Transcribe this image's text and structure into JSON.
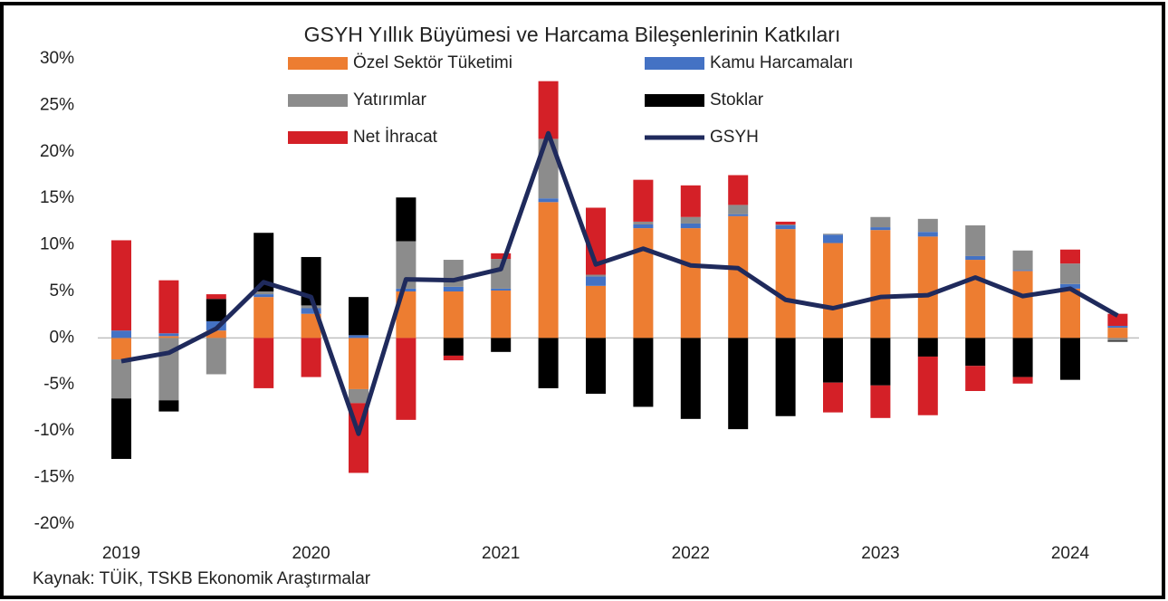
{
  "chart_data": {
    "type": "bar",
    "stacked": true,
    "title": "GSYH Yıllık Büyümesi ve Harcama Bileşenlerinin  Katkıları",
    "source": "Kaynak: TÜİK, TSKB Ekonomik Araştırmalar",
    "categories": [
      "2019",
      null,
      null,
      null,
      "2020",
      null,
      null,
      null,
      "2021",
      null,
      null,
      null,
      "2022",
      null,
      null,
      null,
      "2023",
      null,
      null,
      null,
      "2024",
      null
    ],
    "ylim": [
      -20,
      30
    ],
    "yticks": [
      {
        "value": -20,
        "label": "-20%"
      },
      {
        "value": -15,
        "label": "-15%"
      },
      {
        "value": -10,
        "label": "-10%"
      },
      {
        "value": -5,
        "label": "-5%"
      },
      {
        "value": 0,
        "label": "0%"
      },
      {
        "value": 5,
        "label": "5%"
      },
      {
        "value": 10,
        "label": "10%"
      },
      {
        "value": 15,
        "label": "15%"
      },
      {
        "value": 20,
        "label": "20%"
      },
      {
        "value": 25,
        "label": "25%"
      },
      {
        "value": 30,
        "label": "30%"
      }
    ],
    "series": [
      {
        "name": "Özel Sektör Tüketimi",
        "color": "#ed7d31",
        "values": [
          -2.3,
          0.2,
          0.8,
          4.4,
          2.6,
          -5.5,
          5.0,
          5.0,
          5.1,
          14.6,
          5.6,
          11.8,
          11.8,
          13.1,
          11.7,
          10.2,
          11.6,
          10.9,
          8.4,
          7.2,
          5.3,
          1.1
        ]
      },
      {
        "name": "Kamu Harcamaları",
        "color": "#4472c4",
        "values": [
          0.8,
          0.3,
          1.0,
          0.3,
          0.6,
          0.3,
          0.3,
          0.5,
          0.2,
          0.4,
          1.0,
          0.4,
          0.5,
          0.2,
          0.4,
          0.9,
          0.3,
          0.5,
          0.4,
          0.1,
          0.5,
          0.2
        ]
      },
      {
        "name": "Yatırımlar",
        "color": "#8c8c8c",
        "values": [
          -4.2,
          -6.7,
          -3.9,
          0.3,
          0.3,
          -1.5,
          5.1,
          2.9,
          3.2,
          6.4,
          0.2,
          0.3,
          0.7,
          1.0,
          0.1,
          0.1,
          1.1,
          1.4,
          3.3,
          2.1,
          2.2,
          -0.3
        ]
      },
      {
        "name": "Stoklar",
        "color": "#000000",
        "values": [
          -6.5,
          -1.2,
          2.4,
          6.3,
          5.2,
          4.1,
          4.7,
          -1.9,
          -1.5,
          -5.4,
          -6.0,
          -7.4,
          -8.7,
          -9.8,
          -8.4,
          -4.8,
          -5.1,
          -2.0,
          -3.0,
          -4.2,
          -4.5,
          -0.1
        ]
      },
      {
        "name": "Net İhracat",
        "color": "#d42027",
        "values": [
          9.7,
          5.7,
          0.5,
          -5.4,
          -4.2,
          -7.5,
          -8.8,
          -0.5,
          0.6,
          6.2,
          7.2,
          4.5,
          3.4,
          3.2,
          0.3,
          -3.2,
          -3.5,
          -6.3,
          -2.7,
          -0.7,
          1.5,
          1.3
        ]
      },
      {
        "name": "GSYH",
        "color": "#1f2a5c",
        "type": "line",
        "values": [
          -2.5,
          -1.6,
          1.0,
          6.0,
          4.4,
          -10.3,
          6.3,
          6.2,
          7.4,
          22.0,
          7.9,
          9.6,
          7.8,
          7.5,
          4.1,
          3.2,
          4.4,
          4.6,
          6.5,
          4.5,
          5.3,
          2.4
        ]
      }
    ]
  }
}
